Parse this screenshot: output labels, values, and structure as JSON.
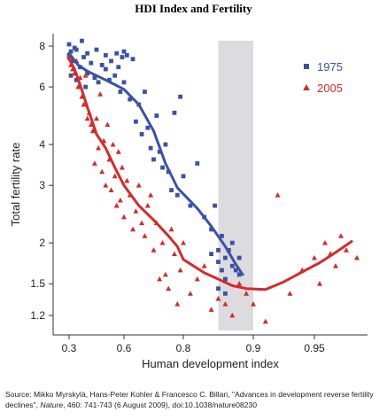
{
  "title": "HDI Index and Fertility",
  "source": {
    "prefix": "Source: Mikko Myrskylä,  Hans-Peter Kohler & Francesco C. Billari, \"Advances in development reverse fertility declines\", ",
    "journal": "Nature",
    "suffix": ",  460: 741-743 (6 August 2009), doi:10.1038/nature08230"
  },
  "colors": {
    "s1975": "#3a52a6",
    "s2005": "#d62a2a",
    "band": "#dcdcdf",
    "axis": "#333333"
  },
  "chart_data": {
    "type": "scatter",
    "xlabel": "Human development index",
    "ylabel": "Total fertility rate",
    "x_ticks": [
      "0.3",
      "0.6",
      "0.8",
      "0.9",
      "0.95"
    ],
    "y_ticks": [
      "1.2",
      "1.5",
      "2",
      "3",
      "4",
      "6",
      "8"
    ],
    "x_tick_values": [
      0.3,
      0.6,
      0.8,
      0.9,
      0.95
    ],
    "y_tick_values": [
      1.2,
      1.5,
      2,
      3,
      4,
      6,
      8
    ],
    "y_scale": "log",
    "shaded_band_x": [
      0.85,
      0.9
    ],
    "legend_position": "top-right",
    "series": [
      {
        "name": "1975",
        "marker": "square",
        "trend": [
          [
            0.3,
            7.6
          ],
          [
            0.35,
            7.0
          ],
          [
            0.4,
            6.7
          ],
          [
            0.45,
            6.5
          ],
          [
            0.5,
            6.3
          ],
          [
            0.55,
            6.1
          ],
          [
            0.6,
            5.9
          ],
          [
            0.65,
            5.3
          ],
          [
            0.7,
            4.4
          ],
          [
            0.74,
            3.5
          ],
          [
            0.78,
            2.95
          ],
          [
            0.82,
            2.55
          ],
          [
            0.84,
            2.25
          ],
          [
            0.86,
            1.95
          ],
          [
            0.875,
            1.72
          ],
          [
            0.885,
            1.6
          ]
        ],
        "points": [
          [
            0.3,
            7.5
          ],
          [
            0.3,
            8.1
          ],
          [
            0.31,
            7.7
          ],
          [
            0.31,
            6.5
          ],
          [
            0.32,
            7.2
          ],
          [
            0.33,
            7.9
          ],
          [
            0.34,
            6.3
          ],
          [
            0.34,
            7.8
          ],
          [
            0.36,
            6.9
          ],
          [
            0.37,
            8.3
          ],
          [
            0.38,
            7.4
          ],
          [
            0.39,
            6.0
          ],
          [
            0.4,
            7.6
          ],
          [
            0.4,
            6.6
          ],
          [
            0.42,
            7.1
          ],
          [
            0.44,
            6.4
          ],
          [
            0.45,
            7.8
          ],
          [
            0.46,
            6.2
          ],
          [
            0.48,
            7.0
          ],
          [
            0.5,
            6.8
          ],
          [
            0.5,
            7.5
          ],
          [
            0.52,
            6.3
          ],
          [
            0.53,
            7.2
          ],
          [
            0.55,
            6.5
          ],
          [
            0.56,
            7.6
          ],
          [
            0.57,
            6.9
          ],
          [
            0.58,
            5.8
          ],
          [
            0.59,
            7.4
          ],
          [
            0.6,
            7.7
          ],
          [
            0.6,
            6.2
          ],
          [
            0.61,
            7.5
          ],
          [
            0.62,
            5.5
          ],
          [
            0.63,
            7.3
          ],
          [
            0.64,
            4.7
          ],
          [
            0.65,
            5.3
          ],
          [
            0.66,
            4.3
          ],
          [
            0.67,
            5.8
          ],
          [
            0.68,
            4.5
          ],
          [
            0.69,
            3.9
          ],
          [
            0.7,
            3.6
          ],
          [
            0.71,
            4.9
          ],
          [
            0.72,
            3.8
          ],
          [
            0.73,
            3.4
          ],
          [
            0.74,
            4.0
          ],
          [
            0.75,
            3.3
          ],
          [
            0.76,
            2.9
          ],
          [
            0.77,
            5.0
          ],
          [
            0.78,
            2.8
          ],
          [
            0.79,
            5.6
          ],
          [
            0.8,
            3.2
          ],
          [
            0.81,
            2.6
          ],
          [
            0.82,
            3.5
          ],
          [
            0.83,
            2.4
          ],
          [
            0.84,
            2.2
          ],
          [
            0.845,
            2.6
          ],
          [
            0.85,
            1.9
          ],
          [
            0.85,
            1.75
          ],
          [
            0.855,
            2.1
          ],
          [
            0.86,
            1.8
          ],
          [
            0.86,
            1.55
          ],
          [
            0.865,
            1.9
          ],
          [
            0.87,
            1.7
          ],
          [
            0.87,
            2.0
          ],
          [
            0.875,
            1.65
          ],
          [
            0.88,
            1.8
          ],
          [
            0.88,
            1.6
          ],
          [
            0.84,
            1.85
          ],
          [
            0.85,
            1.45
          ],
          [
            0.86,
            1.4
          ],
          [
            0.855,
            1.65
          ]
        ]
      },
      {
        "name": "2005",
        "marker": "triangle",
        "trend": [
          [
            0.3,
            7.3
          ],
          [
            0.33,
            6.8
          ],
          [
            0.36,
            6.1
          ],
          [
            0.4,
            5.2
          ],
          [
            0.45,
            4.3
          ],
          [
            0.5,
            3.9
          ],
          [
            0.55,
            3.4
          ],
          [
            0.6,
            3.0
          ],
          [
            0.65,
            2.6
          ],
          [
            0.7,
            2.35
          ],
          [
            0.75,
            2.1
          ],
          [
            0.78,
            1.95
          ],
          [
            0.8,
            1.78
          ],
          [
            0.83,
            1.62
          ],
          [
            0.85,
            1.55
          ],
          [
            0.87,
            1.48
          ],
          [
            0.89,
            1.45
          ],
          [
            0.91,
            1.44
          ],
          [
            0.925,
            1.52
          ],
          [
            0.94,
            1.63
          ],
          [
            0.955,
            1.74
          ],
          [
            0.97,
            1.87
          ],
          [
            0.985,
            2.02
          ]
        ],
        "points": [
          [
            0.3,
            7.4
          ],
          [
            0.31,
            7.0
          ],
          [
            0.32,
            6.8
          ],
          [
            0.33,
            6.6
          ],
          [
            0.34,
            7.2
          ],
          [
            0.35,
            6.0
          ],
          [
            0.36,
            6.4
          ],
          [
            0.37,
            5.6
          ],
          [
            0.38,
            5.3
          ],
          [
            0.39,
            6.5
          ],
          [
            0.4,
            4.8
          ],
          [
            0.41,
            5.0
          ],
          [
            0.42,
            4.6
          ],
          [
            0.43,
            4.4
          ],
          [
            0.44,
            3.5
          ],
          [
            0.45,
            4.8
          ],
          [
            0.46,
            3.9
          ],
          [
            0.47,
            5.7
          ],
          [
            0.48,
            3.3
          ],
          [
            0.49,
            4.1
          ],
          [
            0.5,
            3.0
          ],
          [
            0.51,
            4.6
          ],
          [
            0.52,
            3.6
          ],
          [
            0.53,
            2.9
          ],
          [
            0.54,
            4.0
          ],
          [
            0.55,
            3.2
          ],
          [
            0.56,
            2.6
          ],
          [
            0.57,
            3.8
          ],
          [
            0.58,
            2.7
          ],
          [
            0.59,
            3.4
          ],
          [
            0.6,
            2.4
          ],
          [
            0.61,
            3.1
          ],
          [
            0.62,
            2.8
          ],
          [
            0.63,
            2.2
          ],
          [
            0.64,
            2.5
          ],
          [
            0.65,
            3.0
          ],
          [
            0.66,
            2.3
          ],
          [
            0.67,
            2.1
          ],
          [
            0.68,
            2.6
          ],
          [
            0.69,
            2.8
          ],
          [
            0.7,
            1.9
          ],
          [
            0.71,
            2.3
          ],
          [
            0.72,
            1.55
          ],
          [
            0.73,
            2.0
          ],
          [
            0.74,
            1.6
          ],
          [
            0.75,
            1.45
          ],
          [
            0.76,
            2.2
          ],
          [
            0.77,
            1.85
          ],
          [
            0.78,
            1.3
          ],
          [
            0.79,
            1.65
          ],
          [
            0.8,
            2.0
          ],
          [
            0.81,
            1.4
          ],
          [
            0.82,
            1.55
          ],
          [
            0.83,
            1.7
          ],
          [
            0.84,
            1.25
          ],
          [
            0.85,
            1.35
          ],
          [
            0.86,
            1.3
          ],
          [
            0.87,
            1.2
          ],
          [
            0.88,
            1.5
          ],
          [
            0.89,
            1.4
          ],
          [
            0.9,
            1.3
          ],
          [
            0.91,
            1.15
          ],
          [
            0.92,
            2.8
          ],
          [
            0.93,
            1.4
          ],
          [
            0.94,
            1.65
          ],
          [
            0.95,
            1.8
          ],
          [
            0.955,
            1.5
          ],
          [
            0.96,
            2.0
          ],
          [
            0.965,
            1.85
          ],
          [
            0.97,
            1.7
          ],
          [
            0.975,
            2.1
          ],
          [
            0.98,
            1.9
          ],
          [
            0.99,
            1.8
          ]
        ]
      }
    ]
  }
}
